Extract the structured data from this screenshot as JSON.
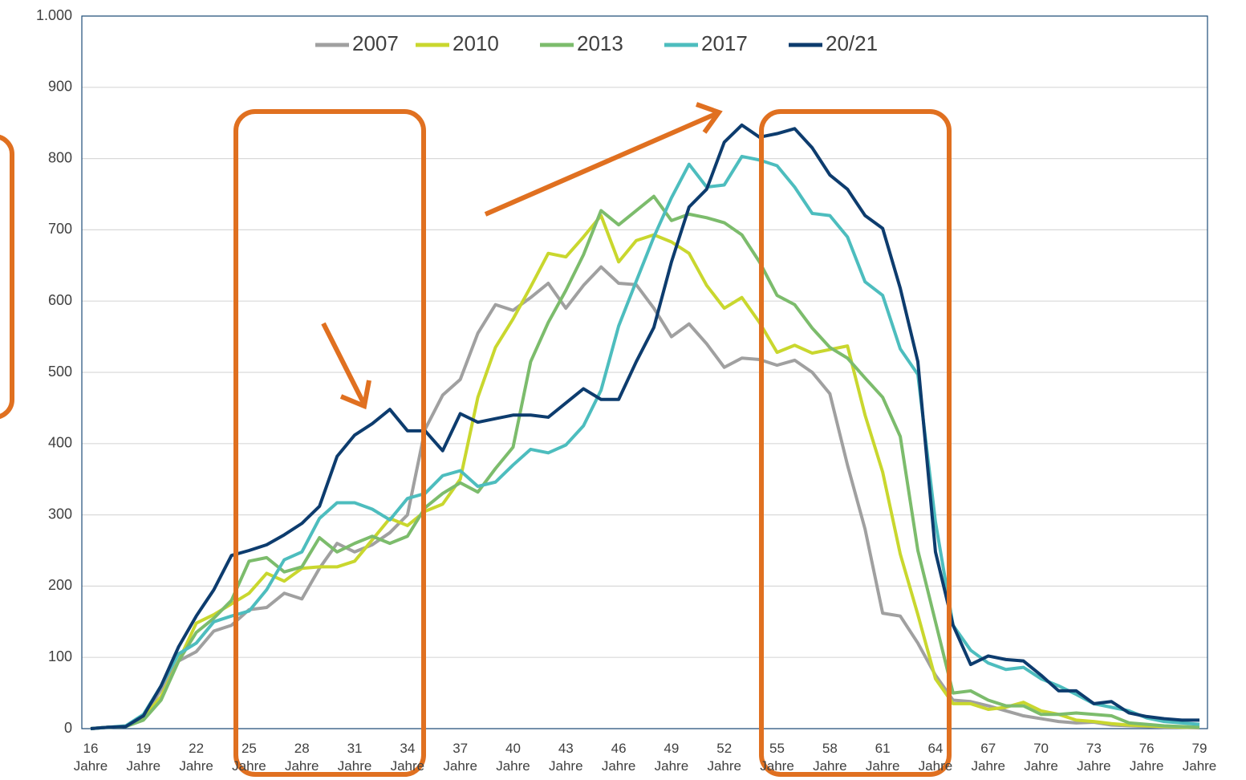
{
  "chart_data": {
    "type": "line",
    "categories": [
      "16 Jahre",
      null,
      null,
      "19 Jahre",
      null,
      null,
      "22 Jahre",
      null,
      null,
      "25 Jahre",
      null,
      null,
      "28 Jahre",
      null,
      null,
      "31 Jahre",
      null,
      null,
      "34 Jahre",
      null,
      null,
      "37 Jahre",
      null,
      null,
      "40 Jahre",
      null,
      null,
      "43 Jahre",
      null,
      null,
      "46 Jahre",
      null,
      null,
      "49 Jahre",
      null,
      null,
      "52 Jahre",
      null,
      null,
      "55 Jahre",
      null,
      null,
      "58 Jahre",
      null,
      null,
      "61 Jahre",
      null,
      null,
      "64 Jahre",
      null,
      null,
      "67 Jahre",
      null,
      null,
      "70 Jahre",
      null,
      null,
      "73 Jahre",
      null,
      null,
      "76 Jahre",
      null,
      null,
      "79 Jahre"
    ],
    "series": [
      {
        "name": "2007",
        "color": "#a0a0a0",
        "values": [
          0,
          2,
          3,
          15,
          55,
          95,
          108,
          137,
          145,
          167,
          170,
          190,
          182,
          225,
          260,
          248,
          258,
          275,
          300,
          420,
          468,
          490,
          555,
          595,
          587,
          605,
          625,
          590,
          622,
          648,
          625,
          623,
          590,
          550,
          568,
          540,
          507,
          520,
          518,
          510,
          517,
          500,
          470,
          370,
          280,
          162,
          158,
          120,
          75,
          40,
          38,
          32,
          25,
          18,
          14,
          10,
          8,
          9,
          5,
          4,
          3,
          2,
          2,
          1
        ]
      },
      {
        "name": "2010",
        "color": "#c9d72e",
        "values": [
          0,
          2,
          3,
          15,
          45,
          95,
          148,
          160,
          175,
          190,
          218,
          207,
          225,
          227,
          227,
          235,
          265,
          295,
          285,
          305,
          315,
          350,
          465,
          535,
          575,
          620,
          667,
          662,
          690,
          720,
          655,
          685,
          693,
          683,
          667,
          622,
          590,
          605,
          570,
          528,
          538,
          527,
          532,
          537,
          440,
          360,
          245,
          160,
          70,
          35,
          35,
          27,
          30,
          37,
          25,
          20,
          12,
          10,
          7,
          5,
          4,
          3,
          2,
          2
        ]
      },
      {
        "name": "2013",
        "color": "#7cbc6c",
        "values": [
          0,
          2,
          3,
          12,
          40,
          95,
          135,
          155,
          180,
          235,
          240,
          220,
          227,
          268,
          248,
          260,
          270,
          260,
          270,
          310,
          330,
          345,
          332,
          365,
          395,
          515,
          570,
          615,
          665,
          727,
          707,
          727,
          747,
          713,
          722,
          717,
          710,
          693,
          655,
          608,
          595,
          562,
          535,
          520,
          492,
          465,
          410,
          250,
          150,
          50,
          53,
          40,
          32,
          32,
          20,
          20,
          22,
          20,
          18,
          8,
          6,
          4,
          3,
          2
        ]
      },
      {
        "name": "2017",
        "color": "#4dbdbe",
        "values": [
          0,
          2,
          4,
          20,
          60,
          105,
          120,
          150,
          158,
          165,
          195,
          237,
          248,
          295,
          317,
          317,
          308,
          293,
          323,
          330,
          355,
          362,
          340,
          346,
          370,
          392,
          387,
          398,
          425,
          475,
          565,
          628,
          690,
          745,
          792,
          760,
          763,
          803,
          798,
          790,
          760,
          723,
          720,
          690,
          627,
          608,
          533,
          497,
          290,
          145,
          110,
          92,
          83,
          86,
          70,
          60,
          48,
          35,
          30,
          25,
          15,
          10,
          8,
          6
        ]
      },
      {
        "name": "20/21",
        "color": "#0d3c6e",
        "values": [
          0,
          2,
          3,
          18,
          60,
          115,
          158,
          195,
          243,
          250,
          258,
          272,
          288,
          312,
          382,
          412,
          428,
          448,
          418,
          418,
          390,
          442,
          430,
          435,
          440,
          440,
          437,
          457,
          477,
          462,
          462,
          515,
          563,
          655,
          732,
          757,
          823,
          847,
          830,
          835,
          842,
          815,
          777,
          757,
          720,
          702,
          618,
          515,
          248,
          145,
          90,
          102,
          97,
          95,
          75,
          53,
          53,
          35,
          38,
          22,
          17,
          14,
          12,
          12
        ]
      }
    ],
    "ylim": [
      0,
      1000
    ],
    "yticks": [
      0,
      100,
      200,
      300,
      400,
      500,
      600,
      700,
      800,
      900,
      {
        "value": 1000,
        "label": "1.000"
      }
    ],
    "grid": true
  }
}
